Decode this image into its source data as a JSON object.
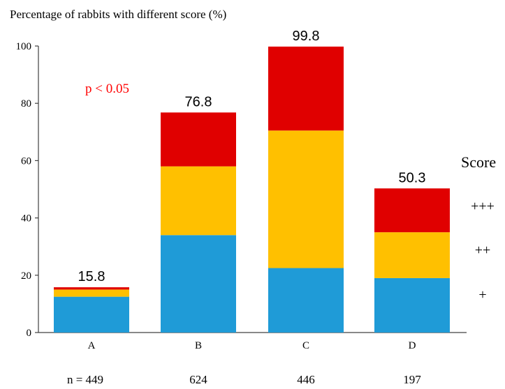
{
  "chart_data": {
    "type": "bar",
    "stacked": true,
    "title": "Percentage of rabbits with different score (%)",
    "categories": [
      "A",
      "B",
      "C",
      "D"
    ],
    "n_labels": [
      "n = 449",
      "624",
      "446",
      "197"
    ],
    "totals": [
      "15.8",
      "76.8",
      "99.8",
      "50.3"
    ],
    "series": [
      {
        "name": "+",
        "color": "#1f9bd7",
        "values": [
          12.5,
          34.0,
          22.5,
          19.0
        ]
      },
      {
        "name": "++",
        "color": "#ffc000",
        "values": [
          2.5,
          24.0,
          48.0,
          16.0
        ]
      },
      {
        "name": "+++",
        "color": "#e00000",
        "values": [
          0.8,
          18.8,
          29.3,
          15.3
        ]
      }
    ],
    "legend_title": "Score",
    "legend_order": [
      "+++",
      "++",
      "+"
    ],
    "legend_position": "right",
    "ylim": [
      0,
      100
    ],
    "yticks": [
      0,
      20,
      40,
      60,
      80,
      100
    ],
    "annotation": "p < 0.05",
    "annotation_color": "#ff0000",
    "grid": false
  }
}
